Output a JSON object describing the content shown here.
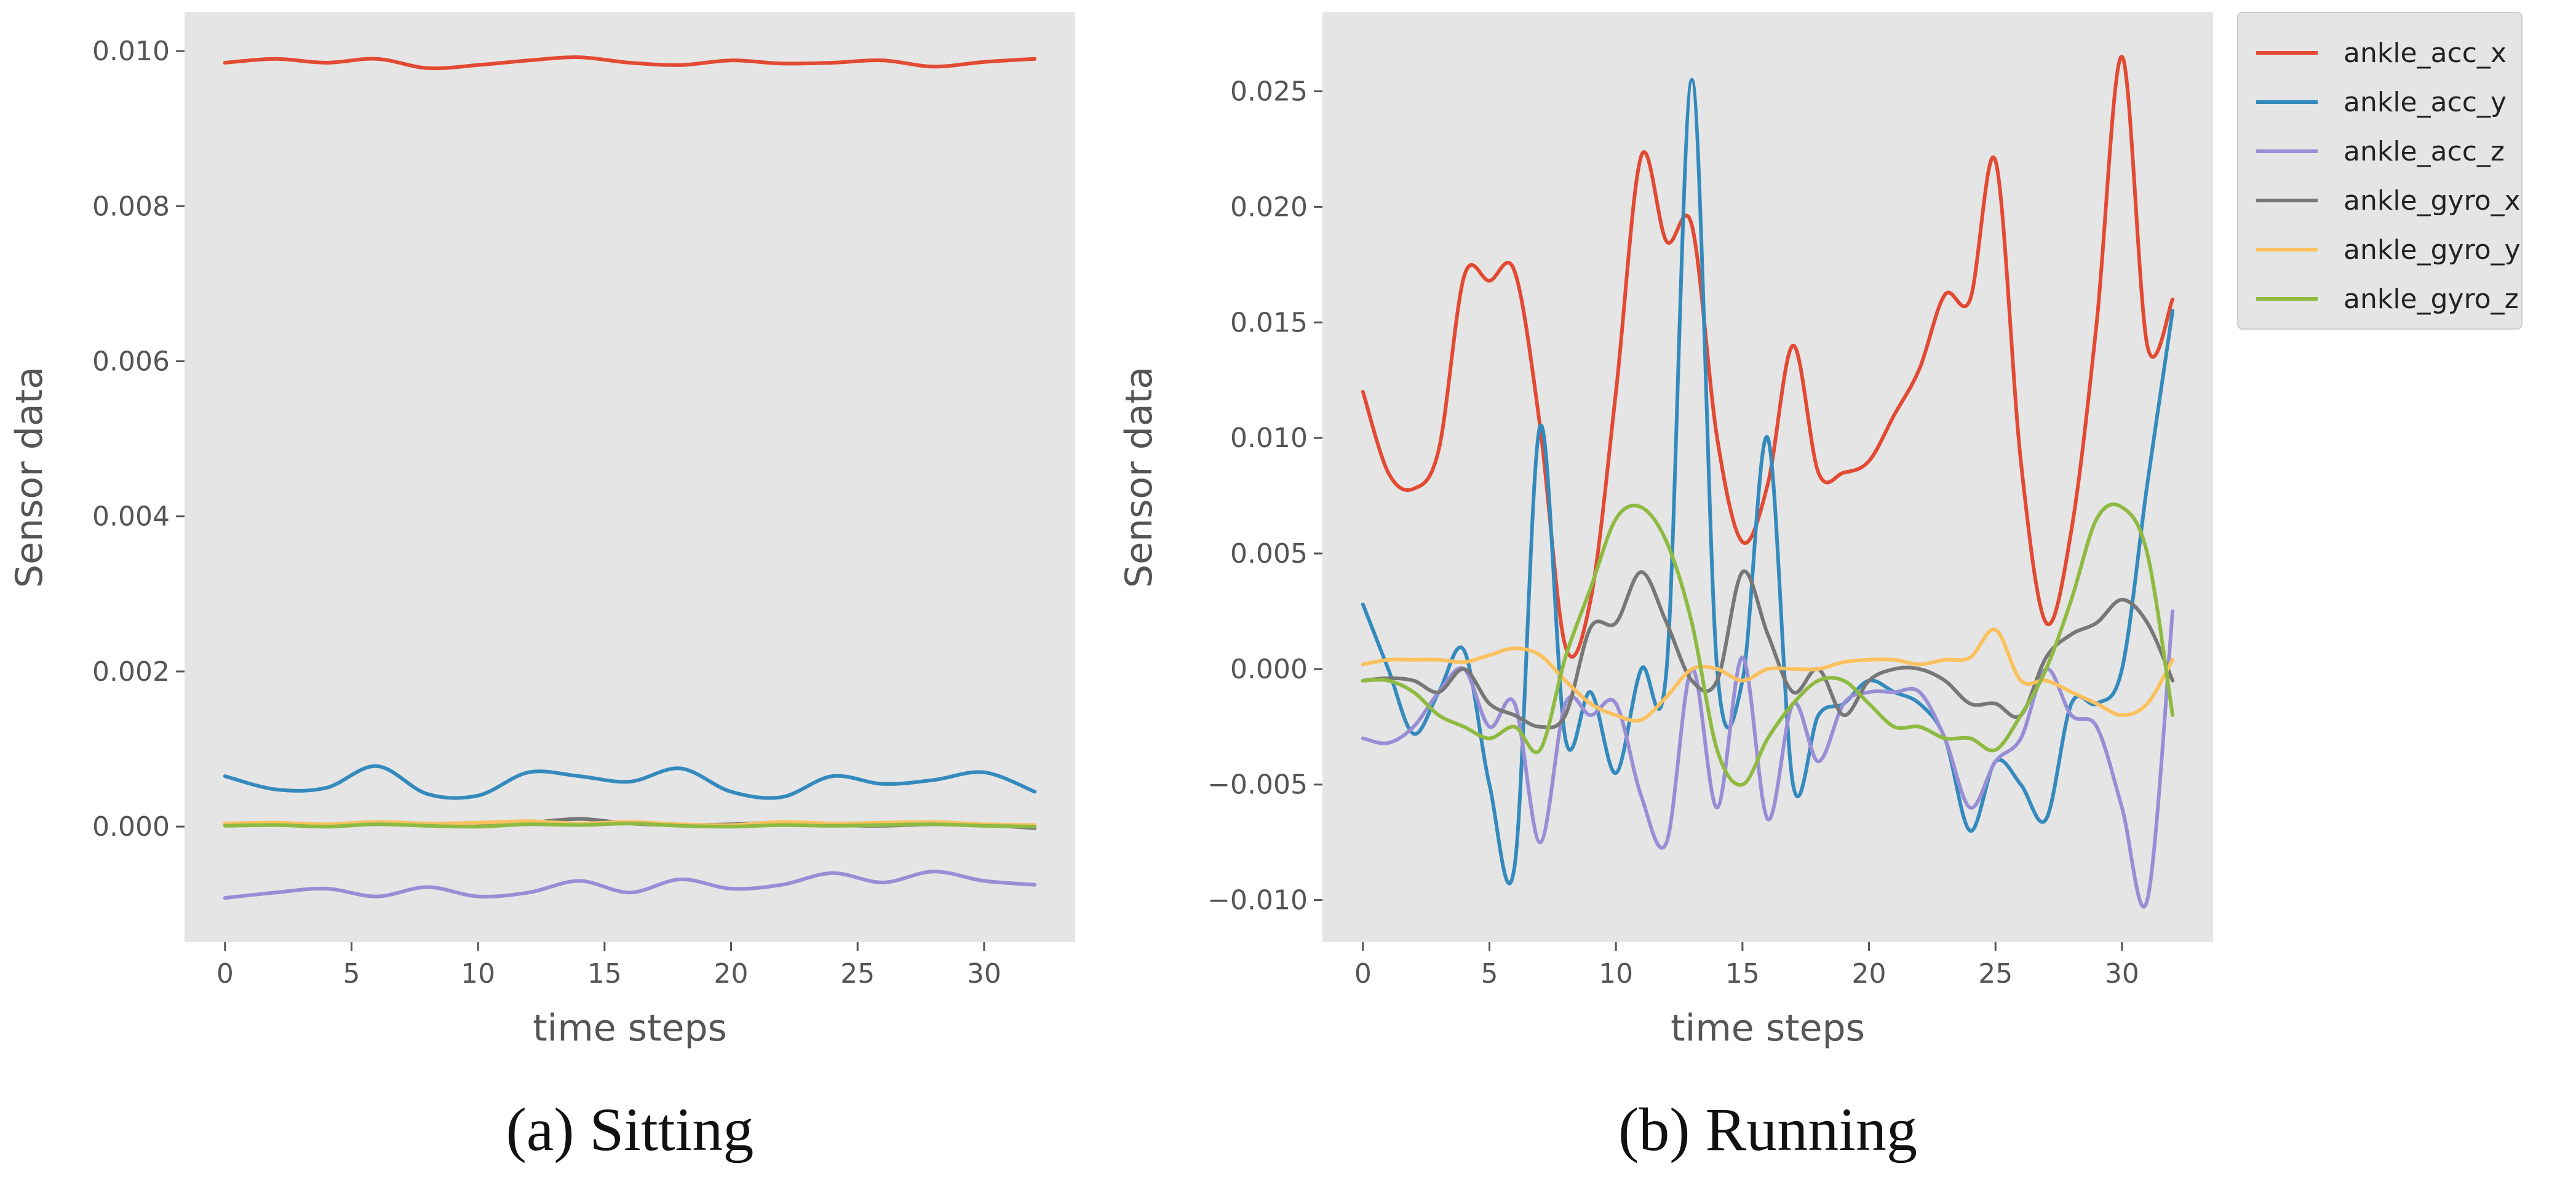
{
  "chart_data": [
    {
      "type": "line",
      "title": "",
      "caption": "(a) Sitting",
      "xlabel": "time steps",
      "ylabel": "Sensor data",
      "xlim": [
        -1.6,
        33.6
      ],
      "ylim": [
        -0.00149,
        0.0105
      ],
      "grid": false,
      "xticks": [
        0,
        5,
        10,
        15,
        20,
        25,
        30
      ],
      "xtick_labels": [
        "0",
        "5",
        "10",
        "15",
        "20",
        "25",
        "30"
      ],
      "yticks": [
        0,
        0.002,
        0.004,
        0.006,
        0.008,
        0.01
      ],
      "ytick_labels": [
        "0.000",
        "0.002",
        "0.004",
        "0.006",
        "0.008",
        "0.010"
      ],
      "x": [
        0,
        2,
        4,
        6,
        8,
        10,
        12,
        14,
        16,
        18,
        20,
        22,
        24,
        26,
        28,
        30,
        32
      ],
      "series": [
        {
          "name": "ankle_acc_x",
          "color": "#E24A33",
          "values": [
            0.00985,
            0.0099,
            0.00985,
            0.0099,
            0.00978,
            0.00982,
            0.00988,
            0.00992,
            0.00985,
            0.00982,
            0.00988,
            0.00984,
            0.00985,
            0.00988,
            0.0098,
            0.00986,
            0.0099
          ]
        },
        {
          "name": "ankle_acc_y",
          "color": "#348ABD",
          "values": [
            0.00065,
            0.00048,
            0.0005,
            0.00078,
            0.00042,
            0.0004,
            0.0007,
            0.00065,
            0.00058,
            0.00075,
            0.00045,
            0.00038,
            0.00065,
            0.00055,
            0.0006,
            0.0007,
            0.00045
          ]
        },
        {
          "name": "ankle_acc_z",
          "color": "#988ED5",
          "values": [
            -0.00092,
            -0.00085,
            -0.0008,
            -0.0009,
            -0.00078,
            -0.0009,
            -0.00085,
            -0.0007,
            -0.00085,
            -0.00068,
            -0.0008,
            -0.00075,
            -0.0006,
            -0.00072,
            -0.00058,
            -0.0007,
            -0.00075
          ]
        },
        {
          "name": "ankle_gyro_x",
          "color": "#777777",
          "values": [
            2e-05,
            3e-05,
            1e-05,
            4e-05,
            2e-05,
            3e-05,
            5e-05,
            0.0001,
            4e-05,
            2e-05,
            3e-05,
            5e-05,
            2e-05,
            1e-05,
            3e-05,
            2e-05,
            -2e-05
          ]
        },
        {
          "name": "ankle_gyro_y",
          "color": "#FBC15E",
          "values": [
            4e-05,
            5e-05,
            3e-05,
            6e-05,
            4e-05,
            5e-05,
            7e-05,
            4e-05,
            6e-05,
            3e-05,
            2e-05,
            6e-05,
            4e-05,
            5e-05,
            6e-05,
            3e-05,
            2e-05
          ]
        },
        {
          "name": "ankle_gyro_z",
          "color": "#8EBA42",
          "values": [
            1e-05,
            2e-05,
            0.0,
            3e-05,
            1e-05,
            0.0,
            3e-05,
            2e-05,
            4e-05,
            1e-05,
            0.0,
            2e-05,
            1e-05,
            2e-05,
            3e-05,
            1e-05,
            0.0
          ]
        }
      ]
    },
    {
      "type": "line",
      "title": "",
      "caption": "(b) Running",
      "xlabel": "time steps",
      "ylabel": "Sensor data",
      "xlim": [
        -1.6,
        33.6
      ],
      "ylim": [
        -0.01182,
        0.02842
      ],
      "grid": false,
      "xticks": [
        0,
        5,
        10,
        15,
        20,
        25,
        30
      ],
      "xtick_labels": [
        "0",
        "5",
        "10",
        "15",
        "20",
        "25",
        "30"
      ],
      "yticks": [
        -0.01,
        -0.005,
        0,
        0.005,
        0.01,
        0.015,
        0.02,
        0.025
      ],
      "ytick_labels": [
        "−0.010",
        "−0.005",
        "0.000",
        "0.005",
        "0.010",
        "0.015",
        "0.020",
        "0.025"
      ],
      "legend": {
        "position": "outside-upper-right",
        "entries": [
          "ankle_acc_x",
          "ankle_acc_y",
          "ankle_acc_z",
          "ankle_gyro_x",
          "ankle_gyro_y",
          "ankle_gyro_z"
        ]
      },
      "x": [
        0,
        1,
        2,
        3,
        4,
        5,
        6,
        7,
        8,
        9,
        10,
        11,
        12,
        13,
        14,
        15,
        16,
        17,
        18,
        19,
        20,
        21,
        22,
        23,
        24,
        25,
        26,
        27,
        28,
        29,
        30,
        31,
        32
      ],
      "series": [
        {
          "name": "ankle_acc_x",
          "color": "#E24A33",
          "values": [
            0.012,
            0.0085,
            0.0078,
            0.0095,
            0.017,
            0.0168,
            0.0172,
            0.0105,
            0.001,
            0.003,
            0.012,
            0.0222,
            0.0185,
            0.0192,
            0.01,
            0.0055,
            0.008,
            0.014,
            0.0085,
            0.0085,
            0.009,
            0.011,
            0.013,
            0.0162,
            0.016,
            0.022,
            0.009,
            0.002,
            0.006,
            0.015,
            0.0265,
            0.014,
            0.016
          ]
        },
        {
          "name": "ankle_acc_y",
          "color": "#348ABD",
          "values": [
            0.0028,
            0.0,
            -0.0028,
            -0.001,
            0.0008,
            -0.005,
            -0.0085,
            0.0105,
            -0.003,
            -0.001,
            -0.0045,
            0.0,
            0.0,
            0.0255,
            0.0,
            -0.0005,
            0.01,
            -0.005,
            -0.002,
            -0.0015,
            -0.0005,
            -0.001,
            -0.0015,
            -0.003,
            -0.007,
            -0.004,
            -0.005,
            -0.0065,
            -0.0015,
            -0.0015,
            0.0,
            0.008,
            0.0155
          ]
        },
        {
          "name": "ankle_acc_z",
          "color": "#988ED5",
          "values": [
            -0.003,
            -0.0032,
            -0.0025,
            -0.001,
            0.0,
            -0.0025,
            -0.0015,
            -0.0075,
            -0.0015,
            -0.002,
            -0.0015,
            -0.0055,
            -0.0075,
            0.0,
            -0.006,
            0.0005,
            -0.0065,
            -0.0015,
            -0.004,
            -0.0015,
            -0.001,
            -0.001,
            -0.001,
            -0.003,
            -0.006,
            -0.004,
            -0.003,
            0.0,
            -0.002,
            -0.0025,
            -0.006,
            -0.01,
            0.0025
          ]
        },
        {
          "name": "ankle_gyro_x",
          "color": "#777777",
          "values": [
            -0.0005,
            -0.0004,
            -0.0005,
            -0.001,
            0.0,
            -0.0015,
            -0.002,
            -0.0025,
            -0.002,
            0.0018,
            0.002,
            0.0042,
            0.002,
            -0.0005,
            -0.0005,
            0.0042,
            0.0015,
            -0.001,
            0.0,
            -0.002,
            -0.0005,
            0.0,
            0.0,
            -0.0005,
            -0.0015,
            -0.0015,
            -0.002,
            0.0005,
            0.0015,
            0.002,
            0.003,
            0.002,
            -0.0005
          ]
        },
        {
          "name": "ankle_gyro_y",
          "color": "#FBC15E",
          "values": [
            0.0002,
            0.0004,
            0.0004,
            0.0004,
            0.0003,
            0.0006,
            0.0009,
            0.0006,
            -0.0005,
            -0.0015,
            -0.002,
            -0.0022,
            -0.0012,
            0.0,
            0.0,
            -0.0005,
            0.0,
            0.0,
            0.0,
            0.0003,
            0.0004,
            0.0004,
            0.0002,
            0.0004,
            0.0005,
            0.0017,
            -0.0005,
            -0.0005,
            -0.001,
            -0.0015,
            -0.002,
            -0.0015,
            0.0004
          ]
        },
        {
          "name": "ankle_gyro_z",
          "color": "#8EBA42",
          "values": [
            -0.0005,
            -0.0005,
            -0.001,
            -0.002,
            -0.0025,
            -0.003,
            -0.0025,
            -0.0035,
            0.0005,
            0.0035,
            0.0065,
            0.007,
            0.0055,
            0.002,
            -0.0035,
            -0.005,
            -0.003,
            -0.0015,
            -0.0005,
            -0.0005,
            -0.0015,
            -0.0025,
            -0.0025,
            -0.003,
            -0.003,
            -0.0035,
            -0.002,
            0.0,
            0.003,
            0.0065,
            0.007,
            0.005,
            -0.002
          ]
        }
      ]
    }
  ]
}
